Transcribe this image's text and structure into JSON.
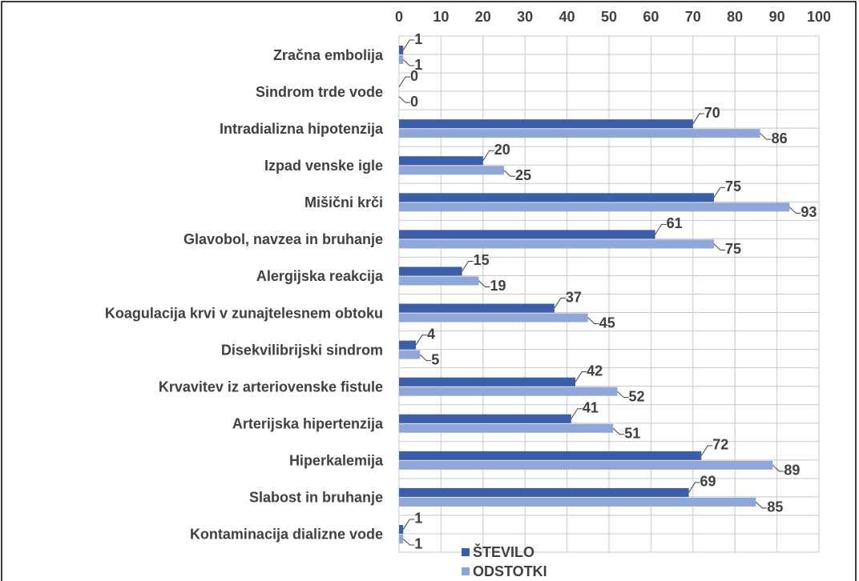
{
  "chart_data": {
    "type": "barh",
    "categories": [
      "Zračna embolija",
      "Sindrom trde vode",
      "Intradializna hipotenzija",
      "Izpad venske igle",
      "Mišični krči",
      "Glavobol, navzea in bruhanje",
      "Alergijska reakcija",
      "Koagulacija krvi v zunajtelesnem obtoku",
      "Disekvilibrijski sindrom",
      "Krvavitev iz arteriovenske fistule",
      "Arterijska hipertenzija",
      "Hiperkalemija",
      "Slabost in bruhanje",
      "Kontaminacija dializne vode"
    ],
    "series": [
      {
        "name": "ŠTEVILO",
        "color": "#3b5ea8",
        "values": [
          1,
          0,
          70,
          20,
          75,
          61,
          15,
          37,
          4,
          42,
          41,
          72,
          69,
          1
        ]
      },
      {
        "name": "ODSTOTKI",
        "color": "#8fa6d8",
        "values": [
          1,
          0,
          86,
          25,
          93,
          75,
          19,
          45,
          5,
          52,
          51,
          89,
          85,
          1
        ]
      }
    ],
    "xlim": [
      0,
      100
    ],
    "xticks": [
      0,
      10,
      20,
      30,
      40,
      50,
      60,
      70,
      80,
      90,
      100
    ],
    "grid": true,
    "legend": "bottom"
  }
}
